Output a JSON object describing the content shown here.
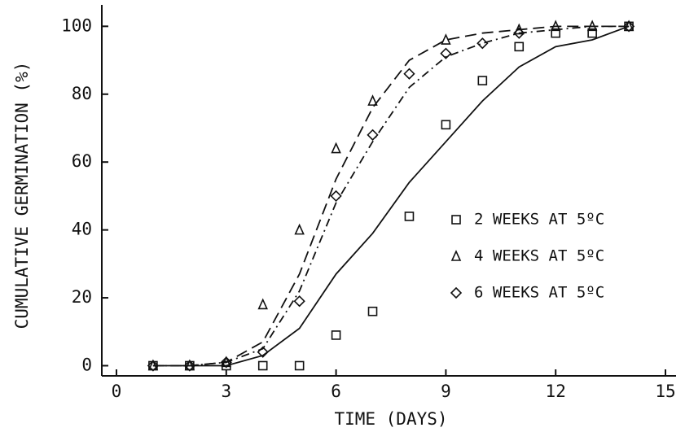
{
  "chart_data": {
    "type": "scatter",
    "x_label": "TIME (DAYS)",
    "y_label": "CUMULATIVE GERMINATION (%)",
    "x": [
      1,
      2,
      3,
      4,
      5,
      6,
      7,
      8,
      9,
      10,
      11,
      12,
      13,
      14
    ],
    "series": [
      {
        "name": "2 WEEKS AT 5ºC",
        "color": "#111111",
        "marker": "square",
        "line_style": "solid",
        "values": [
          0,
          0,
          0,
          0,
          0,
          9,
          16,
          44,
          71,
          84,
          94,
          98,
          98,
          100
        ],
        "fit": [
          0,
          0,
          0,
          3,
          11,
          27,
          39,
          54,
          66,
          78,
          88,
          94,
          96,
          100
        ]
      },
      {
        "name": "4 WEEKS AT 5ºC",
        "color": "#111111",
        "marker": "triangle",
        "line_style": "dashed",
        "values": [
          0,
          0,
          1,
          18,
          40,
          64,
          78,
          null,
          96,
          null,
          99,
          100,
          100,
          100
        ],
        "fit": [
          0,
          0,
          1,
          7,
          27,
          55,
          76,
          90,
          96,
          98,
          99,
          100,
          100,
          100
        ]
      },
      {
        "name": "6 WEEKS AT 5ºC",
        "color": "#111111",
        "marker": "diamond",
        "line_style": "dashdot",
        "values": [
          0,
          0,
          1,
          4,
          19,
          50,
          68,
          86,
          92,
          95,
          98,
          null,
          null,
          100
        ],
        "fit": [
          0,
          0,
          1,
          5,
          22,
          48,
          66,
          82,
          91,
          95,
          98,
          99,
          100,
          100
        ]
      }
    ],
    "xlim": [
      -0.4,
      15.2
    ],
    "ylim": [
      -3,
      102
    ],
    "xticks": [
      0,
      3,
      6,
      9,
      12,
      15
    ],
    "yticks": [
      0,
      20,
      40,
      60,
      80,
      100
    ],
    "legend": "right",
    "grid": false
  }
}
